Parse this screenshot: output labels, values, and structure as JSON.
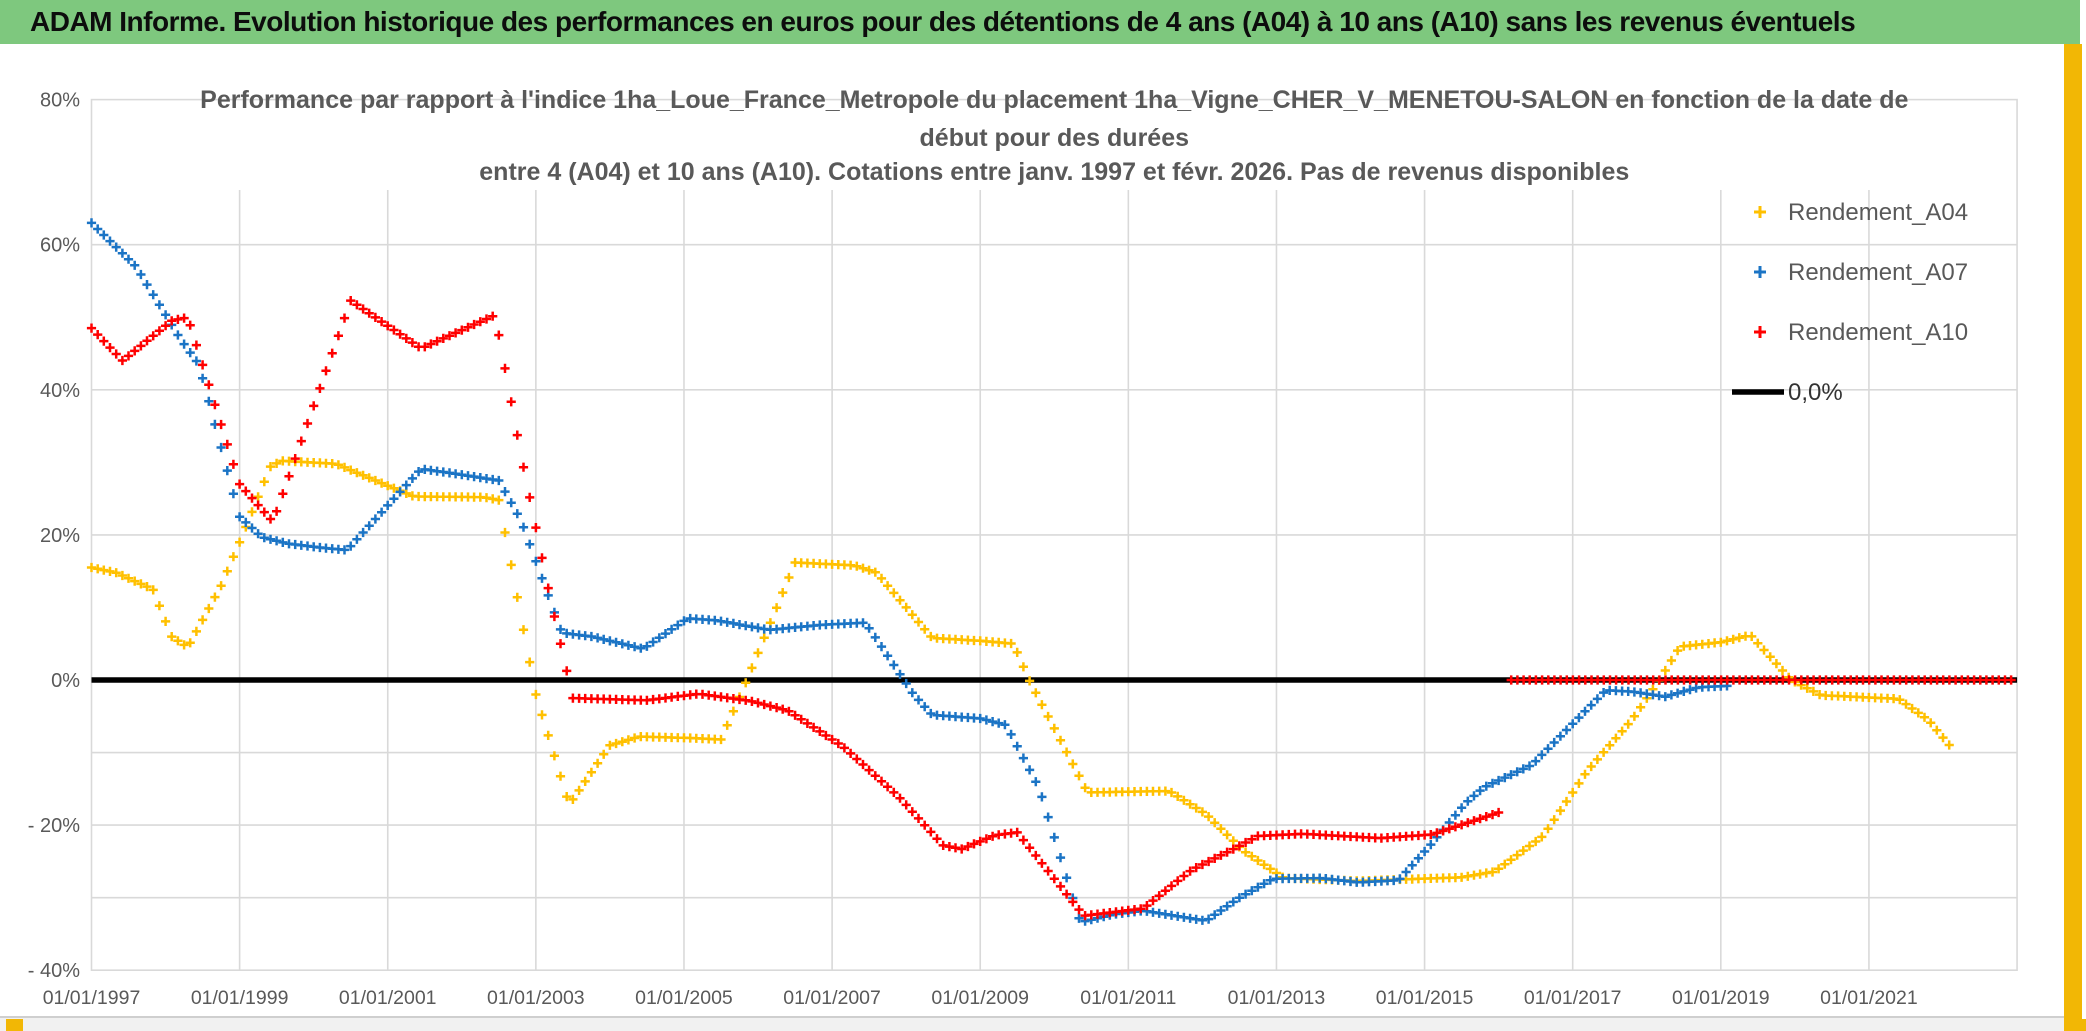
{
  "window": {
    "title": "ADAM Informe. Evolution historique des performances en euros pour des détentions de 4 ans (A04) à 10 ans (A10) sans les revenus éventuels",
    "colors": {
      "titlebar_green": "#7ec87e",
      "accent_gold": "#f2b705",
      "text_gray": "#595959",
      "gridline": "#d9d9d9",
      "series_a04": "#FFC000",
      "series_a07": "#1b74c5",
      "series_a10": "#ff0000",
      "zero_line": "#000000"
    }
  },
  "chart_data": {
    "type": "scatter",
    "marker": "plus",
    "sampling": "monthly markers interpolated between breakpoints [decimal_year, percent]",
    "title_lines": [
      "Performance par rapport à l'indice 1ha_Loue_France_Metropole  du placement 1ha_Vigne_CHER_V_MENETOU-SALON en fonction de la date de",
      "début pour des durées",
      "entre 4 (A04) et 10 ans (A10). Cotations entre janv. 1997 et févr. 2026. Pas de revenus disponibles"
    ],
    "xlim": [
      1997.0,
      2023.0
    ],
    "ylim": [
      -40,
      80
    ],
    "grid": true,
    "x_tick_years": [
      1997,
      1999,
      2001,
      2003,
      2005,
      2007,
      2009,
      2011,
      2013,
      2015,
      2017,
      2019,
      2021
    ],
    "x_tick_labels": [
      "01/01/1997",
      "01/01/1999",
      "01/01/2001",
      "01/01/2003",
      "01/01/2005",
      "01/01/2007",
      "01/01/2009",
      "01/01/2011",
      "01/01/2013",
      "01/01/2015",
      "01/01/2017",
      "01/01/2019",
      "01/01/2021"
    ],
    "y_ticks": [
      {
        "v": 80,
        "label": "80%"
      },
      {
        "v": 60,
        "label": "60%"
      },
      {
        "v": 40,
        "label": "40%"
      },
      {
        "v": 20,
        "label": "20%"
      },
      {
        "v": 0,
        "label": "0%"
      },
      {
        "v": -20,
        "label": "- 20%"
      },
      {
        "v": -40,
        "label": "- 40%"
      }
    ],
    "h_gridlines": [
      60,
      40,
      20,
      -10,
      -20,
      -30
    ],
    "zero_line": {
      "label": "0,0%",
      "value": 0,
      "color": "#000000"
    },
    "legend": {
      "position": "upper-right",
      "items": [
        {
          "label": "Rendement_A04",
          "color": "#FFC000",
          "marker": "plus"
        },
        {
          "label": "Rendement_A07",
          "color": "#1b74c5",
          "marker": "plus"
        },
        {
          "label": "Rendement_A10",
          "color": "#ff0000",
          "marker": "plus"
        },
        {
          "label": "0,0%",
          "color": "#000000",
          "marker": "line"
        }
      ]
    },
    "series": [
      {
        "name": "Rendement_A04",
        "color": "#FFC000",
        "segments": [
          [
            [
              1997.0,
              15.5
            ],
            [
              1997.33,
              14.8
            ],
            [
              1997.83,
              12.5
            ],
            [
              1998.08,
              6.0
            ],
            [
              1998.3,
              4.5
            ],
            [
              1998.75,
              13.0
            ],
            [
              1999.0,
              19.0
            ],
            [
              1999.42,
              29.5
            ],
            [
              1999.58,
              30.2
            ],
            [
              2000.3,
              29.8
            ],
            [
              2000.95,
              27.0
            ],
            [
              2001.35,
              25.3
            ],
            [
              2002.3,
              25.2
            ],
            [
              2002.5,
              24.8
            ],
            [
              2003.0,
              -2.0
            ],
            [
              2003.45,
              -17.2
            ],
            [
              2004.0,
              -9.0
            ],
            [
              2004.4,
              -7.8
            ],
            [
              2005.1,
              -8.0
            ],
            [
              2005.5,
              -8.2
            ],
            [
              2005.85,
              0.0
            ],
            [
              2006.5,
              16.2
            ],
            [
              2007.3,
              15.8
            ],
            [
              2007.6,
              14.8
            ],
            [
              2008.35,
              5.8
            ],
            [
              2009.0,
              5.4
            ],
            [
              2009.45,
              5.0
            ],
            [
              2009.66,
              0.0
            ],
            [
              2010.45,
              -15.5
            ],
            [
              2011.55,
              -15.3
            ],
            [
              2012.05,
              -18.5
            ],
            [
              2012.55,
              -23.5
            ],
            [
              2013.1,
              -27.3
            ],
            [
              2014.1,
              -27.7
            ],
            [
              2015.5,
              -27.2
            ],
            [
              2015.95,
              -26.4
            ],
            [
              2016.6,
              -21.5
            ],
            [
              2017.2,
              -12.5
            ],
            [
              2017.8,
              -5.5
            ],
            [
              2018.17,
              0.0
            ],
            [
              2018.45,
              4.6
            ],
            [
              2019.0,
              5.2
            ],
            [
              2019.4,
              6.2
            ],
            [
              2019.95,
              0.0
            ],
            [
              2020.35,
              -2.1
            ],
            [
              2021.4,
              -2.6
            ],
            [
              2021.8,
              -5.5
            ],
            [
              2022.12,
              -9.4
            ]
          ]
        ]
      },
      {
        "name": "Rendement_A07",
        "color": "#1b74c5",
        "segments": [
          [
            [
              1997.0,
              63.0
            ],
            [
              1997.25,
              60.5
            ],
            [
              1997.6,
              57.0
            ],
            [
              1998.05,
              49.5
            ],
            [
              1998.2,
              47.0
            ],
            [
              1998.45,
              43.5
            ],
            [
              1999.0,
              22.5
            ],
            [
              1999.3,
              19.7
            ],
            [
              1999.65,
              18.8
            ],
            [
              2000.05,
              18.3
            ],
            [
              2000.45,
              17.9
            ],
            [
              2001.45,
              29.1
            ],
            [
              2002.0,
              28.3
            ],
            [
              2002.5,
              27.5
            ],
            [
              2002.8,
              22.0
            ],
            [
              2003.35,
              6.5
            ],
            [
              2003.75,
              6.0
            ],
            [
              2004.45,
              4.3
            ],
            [
              2005.05,
              8.5
            ],
            [
              2005.45,
              8.2
            ],
            [
              2006.15,
              6.9
            ],
            [
              2006.85,
              7.6
            ],
            [
              2007.45,
              7.9
            ],
            [
              2008.1,
              -2.0
            ],
            [
              2008.35,
              -4.8
            ],
            [
              2009.0,
              -5.3
            ],
            [
              2009.35,
              -6.2
            ],
            [
              2009.8,
              -15.0
            ],
            [
              2010.35,
              -33.4
            ],
            [
              2010.8,
              -32.3
            ],
            [
              2011.2,
              -31.8
            ],
            [
              2012.05,
              -33.2
            ],
            [
              2012.5,
              -30.0
            ],
            [
              2012.95,
              -27.4
            ],
            [
              2013.6,
              -27.3
            ],
            [
              2014.1,
              -27.9
            ],
            [
              2014.65,
              -27.6
            ],
            [
              2015.1,
              -22.5
            ],
            [
              2015.55,
              -17.0
            ],
            [
              2015.8,
              -14.8
            ],
            [
              2016.45,
              -11.7
            ],
            [
              2017.45,
              -1.4
            ],
            [
              2017.8,
              -1.6
            ],
            [
              2018.25,
              -2.3
            ],
            [
              2018.7,
              -1.0
            ],
            [
              2019.12,
              -0.8
            ]
          ]
        ]
      },
      {
        "name": "Rendement_A10",
        "color": "#ff0000",
        "segments": [
          [
            [
              1997.0,
              48.5
            ],
            [
              1997.42,
              44.0
            ],
            [
              1998.08,
              49.5
            ],
            [
              1998.3,
              50.0
            ],
            [
              1999.0,
              27.0
            ],
            [
              1999.45,
              21.8
            ],
            [
              2000.5,
              52.3
            ],
            [
              2001.45,
              45.7
            ],
            [
              2002.45,
              50.3
            ],
            [
              2002.8,
              31.0
            ],
            [
              2003.2,
              11.0
            ],
            [
              2003.5,
              -2.5
            ],
            [
              2004.5,
              -2.8
            ],
            [
              2005.2,
              -1.9
            ],
            [
              2005.9,
              -2.9
            ],
            [
              2006.4,
              -4.2
            ],
            [
              2007.15,
              -9.2
            ],
            [
              2007.9,
              -16.1
            ],
            [
              2008.5,
              -22.8
            ],
            [
              2008.75,
              -23.3
            ],
            [
              2009.2,
              -21.4
            ],
            [
              2009.5,
              -21.0
            ],
            [
              2010.4,
              -32.5
            ],
            [
              2011.2,
              -31.5
            ],
            [
              2011.85,
              -26.2
            ],
            [
              2012.4,
              -23.4
            ],
            [
              2012.75,
              -21.5
            ],
            [
              2013.35,
              -21.2
            ],
            [
              2014.4,
              -21.8
            ],
            [
              2015.1,
              -21.3
            ],
            [
              2016.08,
              -18.0
            ]
          ],
          [
            [
              2016.17,
              0.0
            ],
            [
              2023.0,
              0.0
            ]
          ]
        ]
      }
    ]
  }
}
